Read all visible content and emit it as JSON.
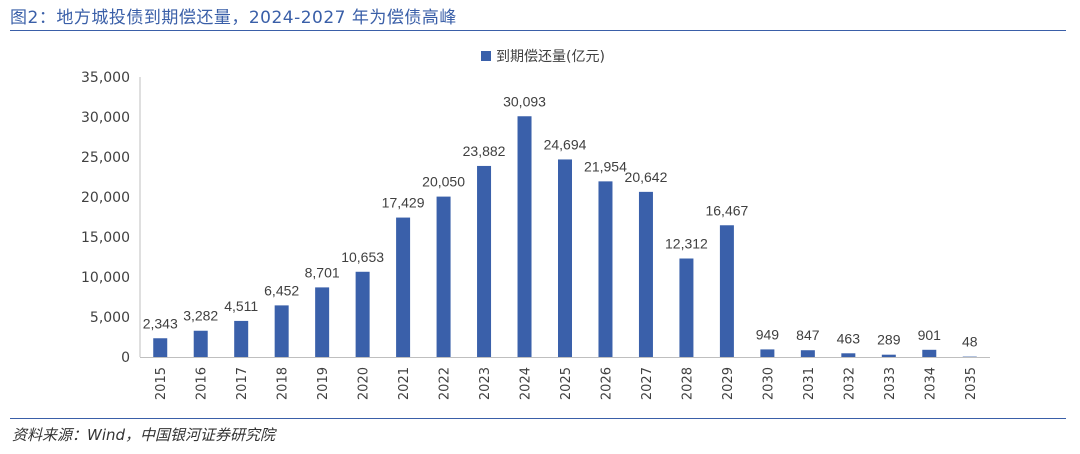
{
  "figure": {
    "title": "图2：地方城投债到期偿还量，2024-2027 年为偿债高峰",
    "source": "资料来源：Wind，中国银河证券研究院"
  },
  "colors": {
    "bar": "#3a60aa",
    "title": "#3a5fa8",
    "axis": "#bfbfbf",
    "text": "#404040"
  },
  "chart_data": {
    "type": "bar",
    "categories": [
      "2015",
      "2016",
      "2017",
      "2018",
      "2019",
      "2020",
      "2021",
      "2022",
      "2023",
      "2024",
      "2025",
      "2026",
      "2027",
      "2028",
      "2029",
      "2030",
      "2031",
      "2032",
      "2033",
      "2034",
      "2035"
    ],
    "series": [
      {
        "name": "到期偿还量(亿元)",
        "values": [
          2343,
          3282,
          4511,
          6452,
          8701,
          10653,
          17429,
          20050,
          23882,
          30093,
          24694,
          21954,
          20642,
          12312,
          16467,
          949,
          847,
          463,
          289,
          901,
          48
        ]
      }
    ],
    "data_labels": [
      "2,343",
      "3,282",
      "4,511",
      "6,452",
      "8,701",
      "10,653",
      "17,429",
      "20,050",
      "23,882",
      "30,093",
      "24,694",
      "21,954",
      "20,642",
      "12,312",
      "16,467",
      "949",
      "847",
      "463",
      "289",
      "901",
      "48"
    ],
    "yticks": [
      0,
      5000,
      10000,
      15000,
      20000,
      25000,
      30000,
      35000
    ],
    "ytick_labels": [
      "0",
      "5,000",
      "10,000",
      "15,000",
      "20,000",
      "25,000",
      "30,000",
      "35,000"
    ],
    "ylim": [
      0,
      35000
    ],
    "legend_position": "top-center",
    "grid": false
  }
}
